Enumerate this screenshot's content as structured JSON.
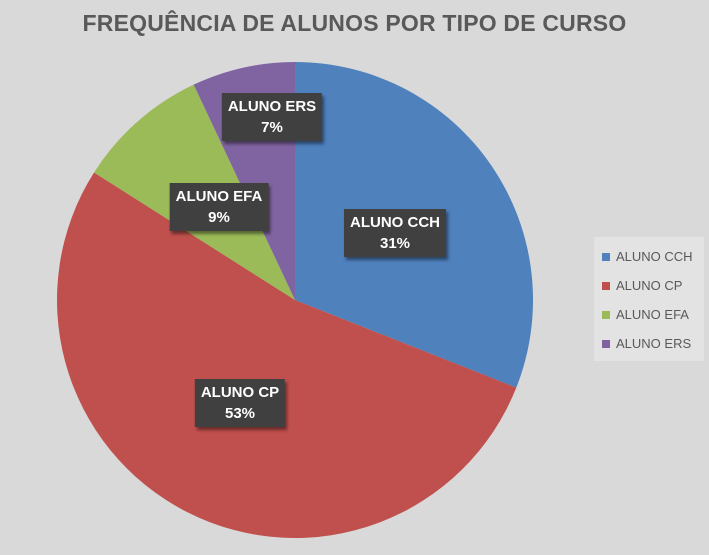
{
  "chart_data": {
    "type": "pie",
    "title": "FREQUÊNCIA DE ALUNOS POR TIPO DE CURSO",
    "categories": [
      "ALUNO CCH",
      "ALUNO CP",
      "ALUNO EFA",
      "ALUNO ERS"
    ],
    "values": [
      31,
      53,
      9,
      7
    ],
    "data_labels": [
      "31%",
      "53%",
      "9%",
      "7%"
    ],
    "colors": [
      "#4f81bd",
      "#c0504d",
      "#9bbb59",
      "#8064a2"
    ],
    "legend": {
      "placement": "right",
      "entries": [
        "ALUNO CCH",
        "ALUNO CP",
        "ALUNO EFA",
        "ALUNO ERS"
      ]
    }
  }
}
